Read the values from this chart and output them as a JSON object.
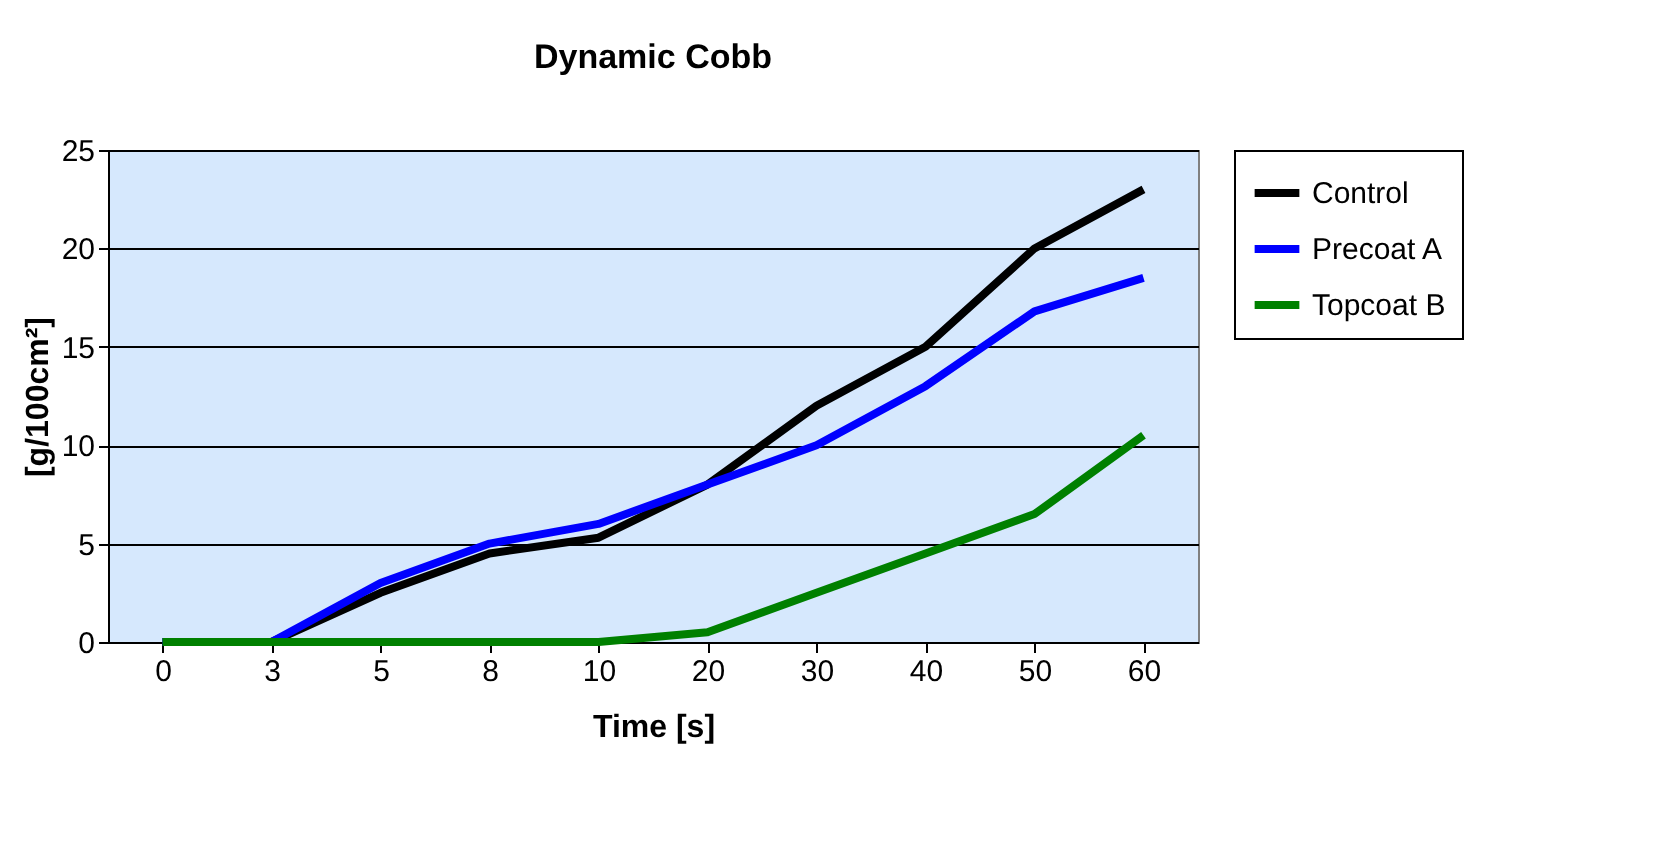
{
  "chart_data": {
    "type": "line",
    "title": "Dynamic Cobb",
    "xlabel": "Time [s]",
    "ylabel": "[g/100cm²]",
    "categories": [
      "0",
      "3",
      "5",
      "8",
      "10",
      "20",
      "30",
      "40",
      "50",
      "60"
    ],
    "series": [
      {
        "name": "Control",
        "color": "#000000",
        "values": [
          0,
          0,
          2.5,
          4.5,
          5.3,
          8,
          12,
          15,
          20,
          23
        ]
      },
      {
        "name": "Precoat A",
        "color": "#0000ff",
        "values": [
          0,
          0,
          3,
          5,
          6,
          8,
          10,
          13,
          16.8,
          18.5
        ]
      },
      {
        "name": "Topcoat B",
        "color": "#008000",
        "values": [
          0,
          0,
          0,
          0,
          0,
          0.5,
          2.5,
          4.5,
          6.5,
          10.5
        ]
      }
    ],
    "ylim": [
      0,
      25
    ],
    "yticks": [
      0,
      5,
      10,
      15,
      20,
      25
    ],
    "grid": "y",
    "legend": "right",
    "marker": "none",
    "line_style": "solid"
  }
}
